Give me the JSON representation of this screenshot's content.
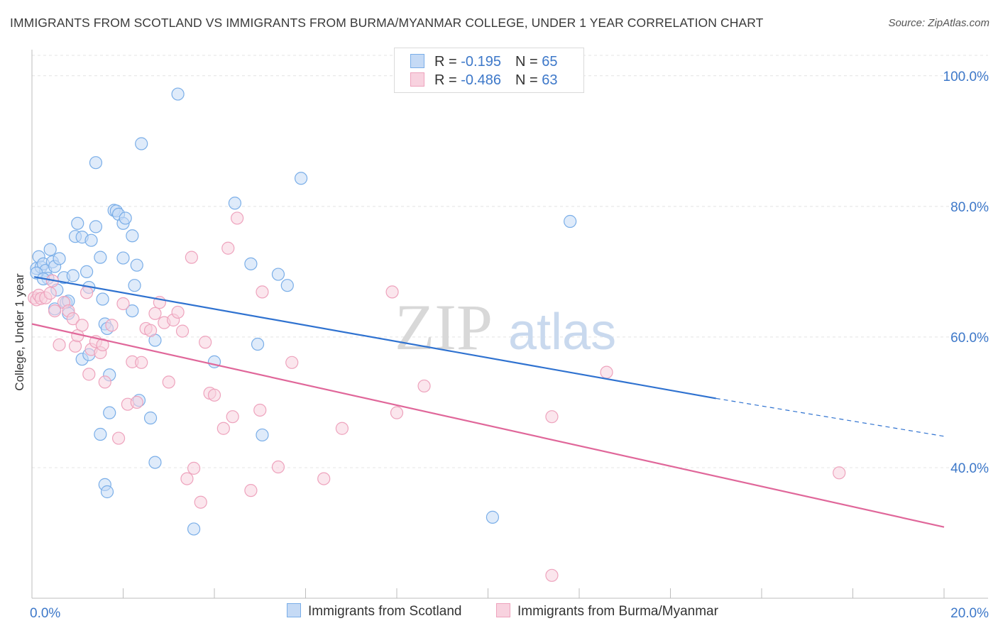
{
  "title": "IMMIGRANTS FROM SCOTLAND VS IMMIGRANTS FROM BURMA/MYANMAR COLLEGE, UNDER 1 YEAR CORRELATION CHART",
  "source": "Source: ZipAtlas.com",
  "watermark": {
    "zip": "ZIP",
    "atlas": "atlas"
  },
  "legend_top": [
    {
      "r_label": "R = ",
      "r_value": "-0.195",
      "n_label": "N = ",
      "n_value": "65"
    },
    {
      "r_label": "R = ",
      "r_value": "-0.486",
      "n_label": "N = ",
      "n_value": "63"
    }
  ],
  "chart_data": {
    "type": "scatter",
    "title": "IMMIGRANTS FROM SCOTLAND VS IMMIGRANTS FROM BURMA/MYANMAR COLLEGE, UNDER 1 YEAR CORRELATION CHART",
    "xlabel": "",
    "ylabel": "College, Under 1 year",
    "xlim": [
      0,
      20
    ],
    "ylim": [
      20,
      104
    ],
    "x_tick_labels": [
      "0.0%",
      "20.0%"
    ],
    "y_ticks": [
      40,
      60,
      80,
      100
    ],
    "y_tick_labels": [
      "40.0%",
      "60.0%",
      "80.0%",
      "100.0%"
    ],
    "grid": true,
    "legend_placement": "bottom-center",
    "series": [
      {
        "name": "Immigrants from Scotland",
        "color": "#7aaee8",
        "fill": "#c5daf5",
        "r": -0.195,
        "n": 65,
        "trend": {
          "x": [
            0.05,
            15.0
          ],
          "y": [
            69.2,
            50.6
          ],
          "dashed_to": [
            20.0,
            44.8
          ]
        },
        "points": [
          [
            0.1,
            70.5
          ],
          [
            0.15,
            72.3
          ],
          [
            0.2,
            70.7
          ],
          [
            0.25,
            71.2
          ],
          [
            0.3,
            70.2
          ],
          [
            0.35,
            69.0
          ],
          [
            0.4,
            73.4
          ],
          [
            0.45,
            71.5
          ],
          [
            0.5,
            70.8
          ],
          [
            0.55,
            67.2
          ],
          [
            0.6,
            72.0
          ],
          [
            0.7,
            69.1
          ],
          [
            0.75,
            65.3
          ],
          [
            0.8,
            65.5
          ],
          [
            0.8,
            63.6
          ],
          [
            0.9,
            69.4
          ],
          [
            0.95,
            75.4
          ],
          [
            1.0,
            77.4
          ],
          [
            1.1,
            75.3
          ],
          [
            1.2,
            70.0
          ],
          [
            1.25,
            67.6
          ],
          [
            1.3,
            74.8
          ],
          [
            1.4,
            76.9
          ],
          [
            1.5,
            72.2
          ],
          [
            1.55,
            65.8
          ],
          [
            1.6,
            62.0
          ],
          [
            1.65,
            61.3
          ],
          [
            1.7,
            54.2
          ],
          [
            1.8,
            79.4
          ],
          [
            1.85,
            79.3
          ],
          [
            1.9,
            78.8
          ],
          [
            2.0,
            77.4
          ],
          [
            2.05,
            78.2
          ],
          [
            2.0,
            72.1
          ],
          [
            2.2,
            75.5
          ],
          [
            2.25,
            67.9
          ],
          [
            2.3,
            71.0
          ],
          [
            2.35,
            50.3
          ],
          [
            2.4,
            89.6
          ],
          [
            1.4,
            86.7
          ],
          [
            2.6,
            47.6
          ],
          [
            2.7,
            40.8
          ],
          [
            2.7,
            59.5
          ],
          [
            3.2,
            97.2
          ],
          [
            1.1,
            56.6
          ],
          [
            1.25,
            57.3
          ],
          [
            2.2,
            64.0
          ],
          [
            1.7,
            48.4
          ],
          [
            1.5,
            45.1
          ],
          [
            1.6,
            37.4
          ],
          [
            1.65,
            36.3
          ],
          [
            3.55,
            30.6
          ],
          [
            4.0,
            56.2
          ],
          [
            4.45,
            80.5
          ],
          [
            4.8,
            71.2
          ],
          [
            4.95,
            58.9
          ],
          [
            5.05,
            45.0
          ],
          [
            5.4,
            69.6
          ],
          [
            5.6,
            67.9
          ],
          [
            5.9,
            84.3
          ],
          [
            10.1,
            32.4
          ],
          [
            11.8,
            77.7
          ],
          [
            0.1,
            69.8
          ],
          [
            0.25,
            68.9
          ],
          [
            0.5,
            64.3
          ]
        ]
      },
      {
        "name": "Immigrants from Burma/Myanmar",
        "color": "#eea3bd",
        "fill": "#f8d2df",
        "r": -0.486,
        "n": 63,
        "trend": {
          "x": [
            0.0,
            20.0
          ],
          "y": [
            62.0,
            30.9
          ]
        },
        "points": [
          [
            0.05,
            66.0
          ],
          [
            0.1,
            65.7
          ],
          [
            0.15,
            66.4
          ],
          [
            0.2,
            65.9
          ],
          [
            0.3,
            66.0
          ],
          [
            0.4,
            66.7
          ],
          [
            0.45,
            68.6
          ],
          [
            0.5,
            64.0
          ],
          [
            0.6,
            58.8
          ],
          [
            0.7,
            65.3
          ],
          [
            0.8,
            64.0
          ],
          [
            0.9,
            62.8
          ],
          [
            0.95,
            58.6
          ],
          [
            1.0,
            60.2
          ],
          [
            1.1,
            61.8
          ],
          [
            1.2,
            66.8
          ],
          [
            1.25,
            54.3
          ],
          [
            1.3,
            58.1
          ],
          [
            1.4,
            59.3
          ],
          [
            1.5,
            57.6
          ],
          [
            1.55,
            58.8
          ],
          [
            1.6,
            53.1
          ],
          [
            1.75,
            61.8
          ],
          [
            1.9,
            44.5
          ],
          [
            2.0,
            65.1
          ],
          [
            2.1,
            49.7
          ],
          [
            2.2,
            56.2
          ],
          [
            2.3,
            50.0
          ],
          [
            2.4,
            56.1
          ],
          [
            2.5,
            61.3
          ],
          [
            2.6,
            61.0
          ],
          [
            2.7,
            63.6
          ],
          [
            2.8,
            65.3
          ],
          [
            2.9,
            62.2
          ],
          [
            3.0,
            53.1
          ],
          [
            3.1,
            62.6
          ],
          [
            3.2,
            63.8
          ],
          [
            3.3,
            60.9
          ],
          [
            3.4,
            38.3
          ],
          [
            3.5,
            72.2
          ],
          [
            3.55,
            39.9
          ],
          [
            3.7,
            34.7
          ],
          [
            3.8,
            59.2
          ],
          [
            3.9,
            51.4
          ],
          [
            4.0,
            51.1
          ],
          [
            4.2,
            46.0
          ],
          [
            4.3,
            73.6
          ],
          [
            4.4,
            47.8
          ],
          [
            4.5,
            78.2
          ],
          [
            4.8,
            36.5
          ],
          [
            5.0,
            48.8
          ],
          [
            5.05,
            66.9
          ],
          [
            5.4,
            40.1
          ],
          [
            5.7,
            56.1
          ],
          [
            6.4,
            38.3
          ],
          [
            6.8,
            46.0
          ],
          [
            8.0,
            48.4
          ],
          [
            7.9,
            66.9
          ],
          [
            8.6,
            52.5
          ],
          [
            11.4,
            47.8
          ],
          [
            12.6,
            54.6
          ],
          [
            17.7,
            39.2
          ],
          [
            11.4,
            23.5
          ]
        ]
      }
    ]
  },
  "legend_bottom": [
    "Immigrants from Scotland",
    "Immigrants from Burma/Myanmar"
  ]
}
